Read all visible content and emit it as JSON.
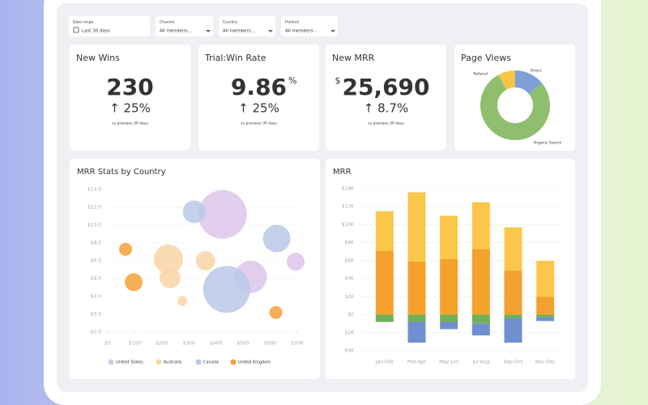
{
  "filters": [
    {
      "label": "Date range",
      "value": "Last 30 days"
    },
    {
      "label": "Channel",
      "value": "All members..."
    },
    {
      "label": "Country",
      "value": "All members..."
    },
    {
      "label": "Product",
      "value": "All members..."
    }
  ],
  "kpis": [
    {
      "title": "New Wins",
      "value": "230",
      "change": "↑ 25%",
      "note": "vs previous 30 days"
    },
    {
      "title": "Trial:Win Rate",
      "value": "9.86",
      "unit": "%",
      "change": "↑ 25%",
      "note": "vs previous 30 days"
    },
    {
      "title": "New MRR",
      "prefix": "$",
      "value": "25,690",
      "change": "↑ 8.7%",
      "note": "vs previous 30 days"
    }
  ],
  "page_views": {
    "type": "pie",
    "title": "Page Views",
    "categories": [
      "Direct",
      "Organic Search",
      "Referral"
    ],
    "values": [
      14,
      78,
      8
    ],
    "colors": [
      "#7f9fd9",
      "#8fbf6e",
      "#f6c544"
    ]
  },
  "bubble_chart": {
    "type": "scatter",
    "title": "MRR Stats by Country",
    "xlim": [
      0,
      700
    ],
    "ylim": [
      -2,
      14
    ],
    "xticks": [
      {
        "value": 0,
        "label": "$0"
      },
      {
        "value": 100,
        "label": "$100"
      },
      {
        "value": 200,
        "label": "$200"
      },
      {
        "value": 300,
        "label": "$300"
      },
      {
        "value": 400,
        "label": "$400"
      },
      {
        "value": 500,
        "label": "$500"
      },
      {
        "value": 600,
        "label": "$600"
      },
      {
        "value": 700,
        "label": "$700"
      }
    ],
    "yticks": [
      {
        "value": -2,
        "label": "-$2.0"
      },
      {
        "value": 0,
        "label": "$0.0"
      },
      {
        "value": 2,
        "label": "$2.0"
      },
      {
        "value": 4,
        "label": "$4.0"
      },
      {
        "value": 6,
        "label": "$6.0"
      },
      {
        "value": 8,
        "label": "$8.0"
      },
      {
        "value": 10,
        "label": "$10.0"
      },
      {
        "value": 12,
        "label": "$12.0"
      },
      {
        "value": 14,
        "label": "$14.0"
      }
    ],
    "series": [
      {
        "name": "United States",
        "color": "#dcc6ea",
        "x": [
          424,
          694,
          528
        ],
        "values": [
          11.2,
          5.9,
          4.2
        ],
        "sizes": [
          30,
          11,
          20
        ]
      },
      {
        "name": "Australia",
        "color": "#f9d5a7",
        "x": [
          224,
          361,
          230,
          275
        ],
        "values": [
          6.2,
          6.0,
          4.1,
          1.5
        ],
        "sizes": [
          18,
          12,
          13,
          6
        ]
      },
      {
        "name": "Canada",
        "color": "#b9c9e6",
        "x": [
          319,
          624,
          439
        ],
        "values": [
          11.5,
          8.5,
          2.8
        ],
        "sizes": [
          14,
          17,
          29
        ]
      },
      {
        "name": "United Kingdom",
        "color": "#f5a03a",
        "x": [
          66,
          96,
          621
        ],
        "values": [
          7.3,
          3.6,
          0.2
        ],
        "sizes": [
          8,
          11,
          8
        ]
      }
    ]
  },
  "mrr_chart": {
    "type": "bar",
    "title": "MRR",
    "categories": [
      "Jan-Feb",
      "Mar-Apr",
      "May-Jun",
      "Jul-Aug",
      "Sep-Oct",
      "Nov-Dec"
    ],
    "ylim": [
      -4,
      14
    ],
    "yticks": [
      {
        "value": -4,
        "label": "-$4K"
      },
      {
        "value": -2,
        "label": "-$2K"
      },
      {
        "value": 0,
        "label": "$0"
      },
      {
        "value": 2,
        "label": "$2K"
      },
      {
        "value": 4,
        "label": "$4K"
      },
      {
        "value": 6,
        "label": "$6K"
      },
      {
        "value": 8,
        "label": "$8K"
      },
      {
        "value": 10,
        "label": "$10K"
      },
      {
        "value": 12,
        "label": "$12K"
      },
      {
        "value": 14,
        "label": "$14K"
      }
    ],
    "series": [
      {
        "color": "#f4a22d",
        "values": [
          7.1,
          5.9,
          6.2,
          7.3,
          4.9,
          2.0
        ]
      },
      {
        "color": "#fbc74a",
        "values": [
          4.4,
          7.7,
          4.8,
          5.2,
          4.8,
          4.0
        ]
      },
      {
        "color": "#6fb05a",
        "values": [
          -0.8,
          -0.8,
          -0.8,
          -1.0,
          -0.4,
          -0.3
        ]
      },
      {
        "color": "#6f8fd0",
        "values": [
          0,
          -2.3,
          -0.8,
          -1.3,
          -2.7,
          -0.4
        ]
      }
    ]
  }
}
